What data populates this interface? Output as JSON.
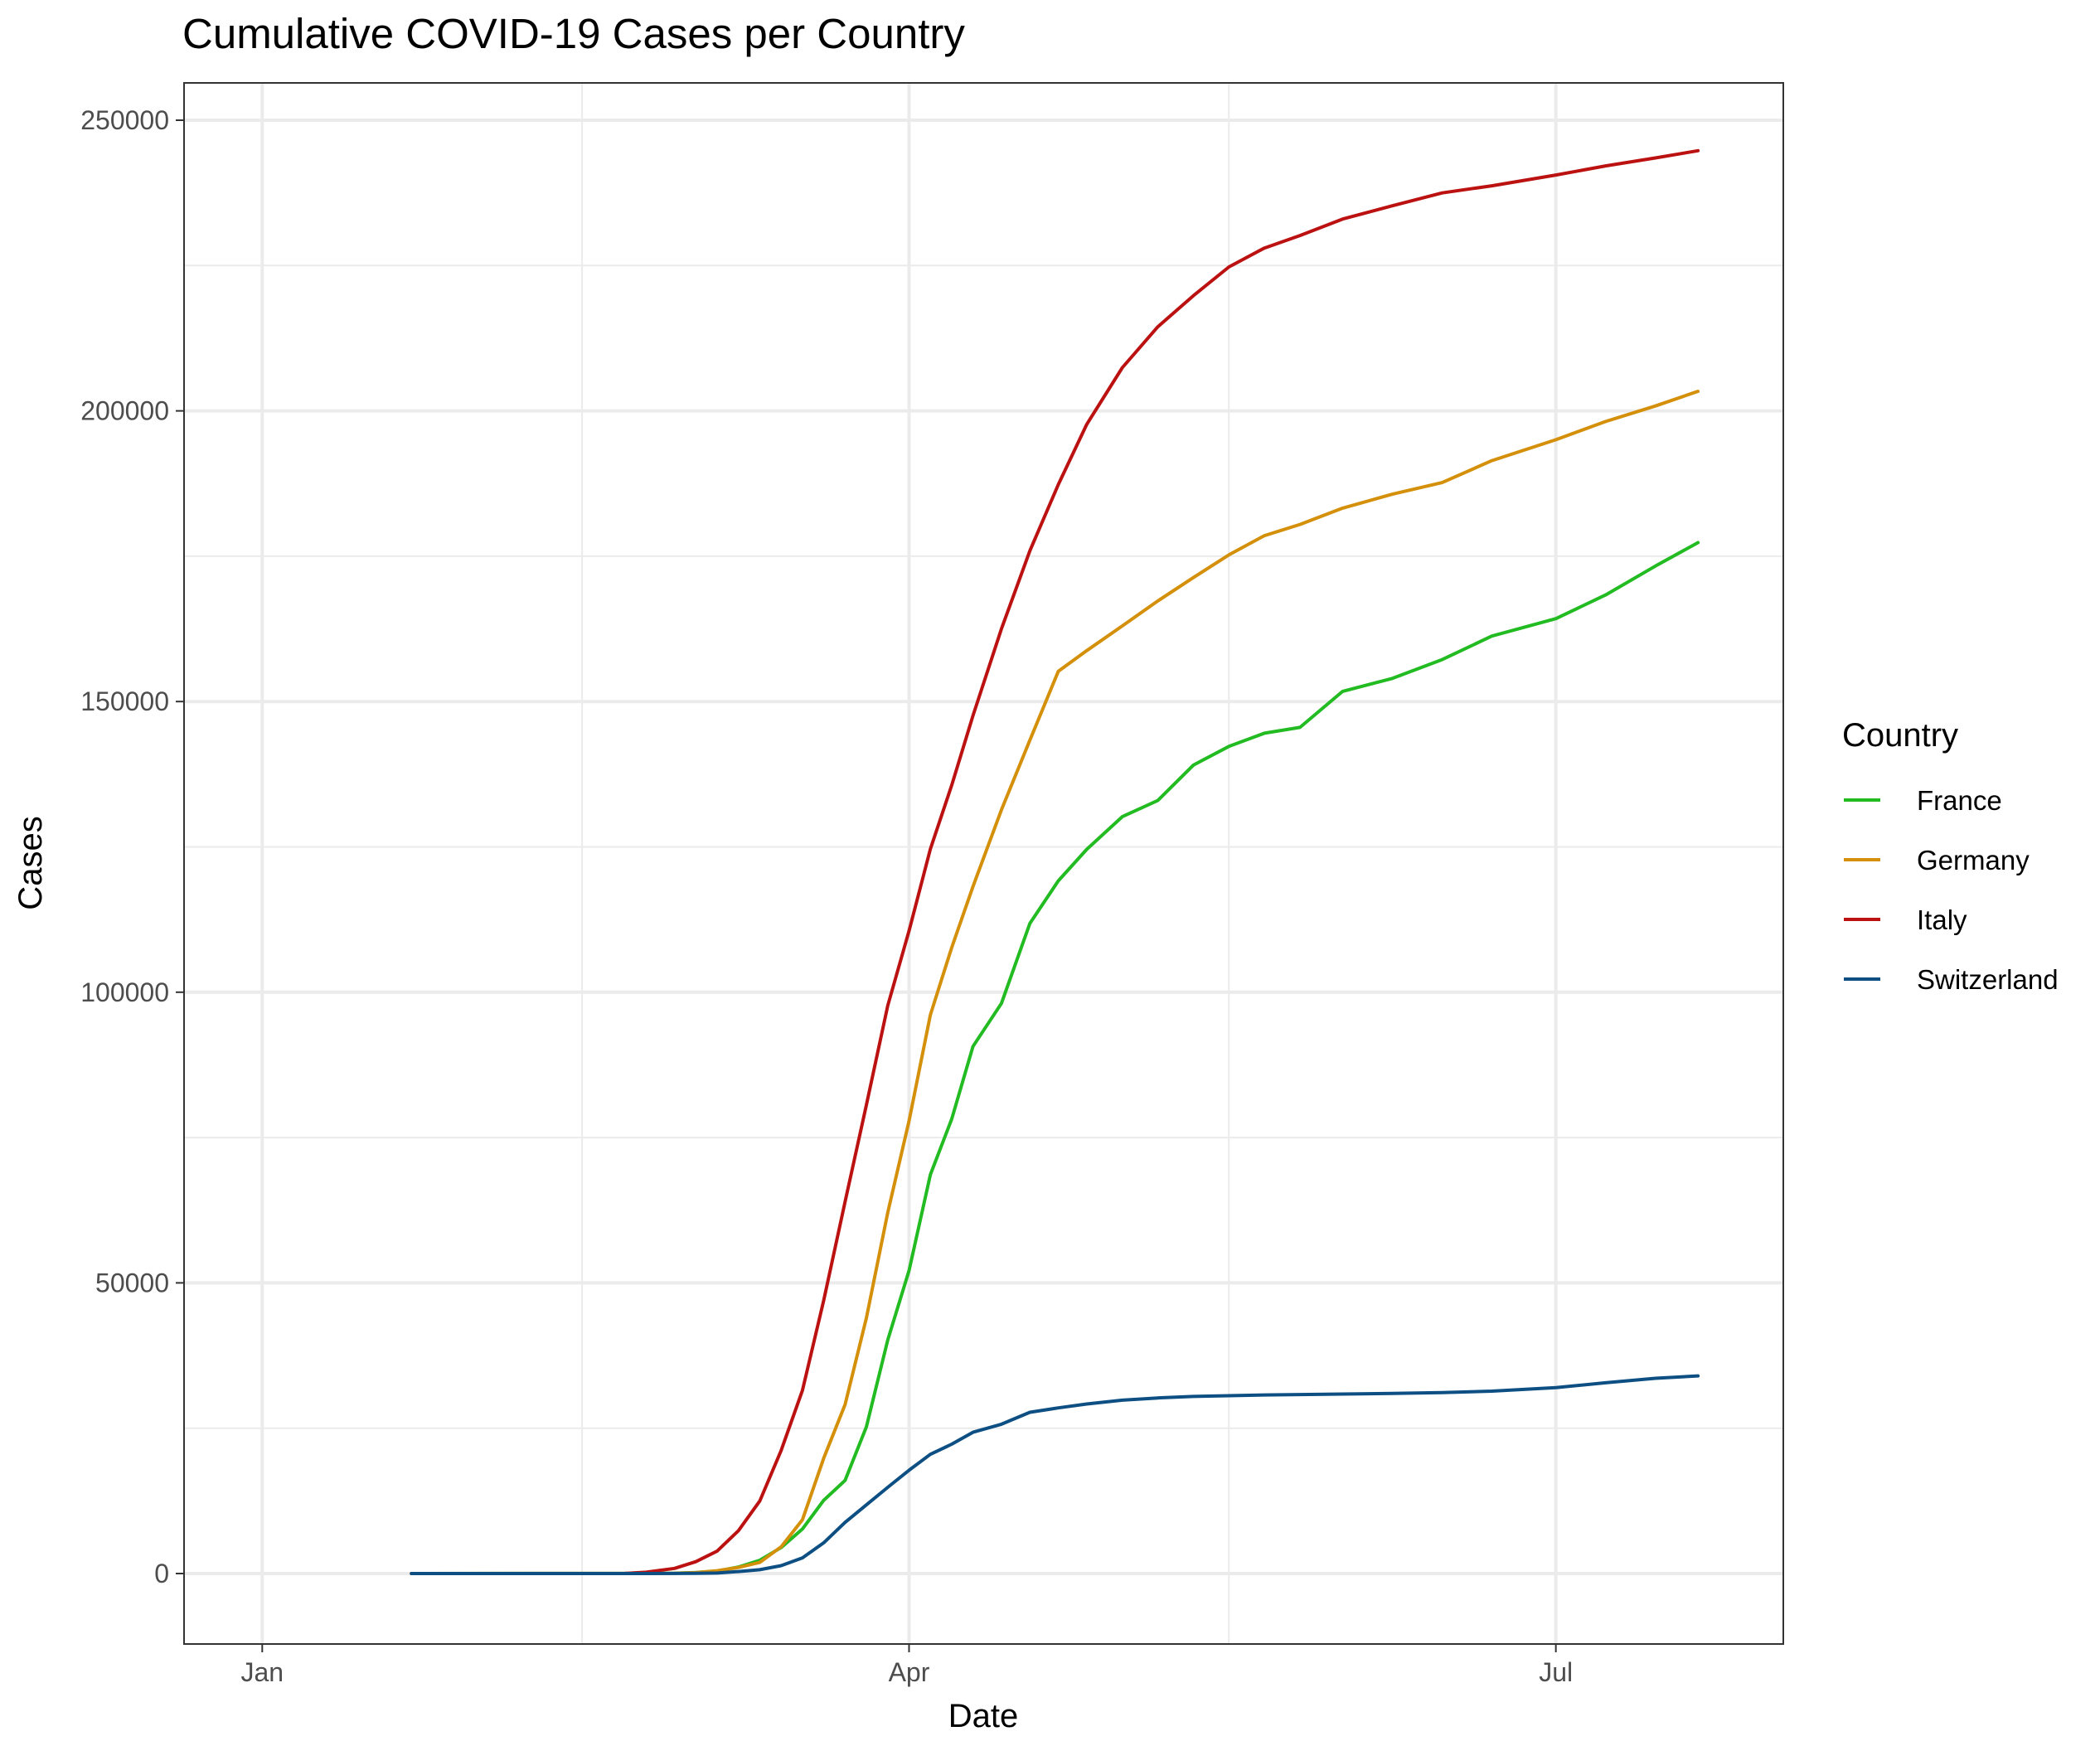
{
  "chart_data": {
    "type": "line",
    "title": "Cumulative COVID-19 Cases per Country",
    "xlabel": "Date",
    "ylabel": "Cases",
    "x_ticks": [
      "Jan",
      "Apr",
      "Jul"
    ],
    "x_tick_dates": [
      "2020-01-01",
      "2020-04-01",
      "2020-07-01"
    ],
    "y_ticks": [
      "0",
      "50000",
      "100000",
      "150000",
      "200000",
      "250000"
    ],
    "xlim": [
      "2019-12-21",
      "2020-08-02"
    ],
    "ylim": [
      -12000,
      250000
    ],
    "grid": true,
    "legend_title": "Country",
    "legend_position": "right",
    "x": [
      "2020-01-22",
      "2020-02-15",
      "2020-02-21",
      "2020-02-24",
      "2020-02-28",
      "2020-03-02",
      "2020-03-05",
      "2020-03-08",
      "2020-03-11",
      "2020-03-14",
      "2020-03-17",
      "2020-03-20",
      "2020-03-23",
      "2020-03-26",
      "2020-03-29",
      "2020-04-01",
      "2020-04-04",
      "2020-04-07",
      "2020-04-10",
      "2020-04-14",
      "2020-04-18",
      "2020-04-22",
      "2020-04-26",
      "2020-05-01",
      "2020-05-06",
      "2020-05-11",
      "2020-05-16",
      "2020-05-21",
      "2020-05-26",
      "2020-06-01",
      "2020-06-08",
      "2020-06-15",
      "2020-06-22",
      "2020-07-01",
      "2020-07-08",
      "2020-07-15",
      "2020-07-21"
    ],
    "series": [
      {
        "name": "France",
        "color": "#22bb22",
        "values": [
          0,
          12,
          12,
          12,
          57,
          191,
          423,
          1126,
          2284,
          4469,
          7652,
          12612,
          16018,
          25233,
          40174,
          52128,
          68605,
          78167,
          90676,
          98076,
          111821,
          119151,
          124575,
          130185,
          132967,
          139063,
          142291,
          144556,
          145555,
          151753,
          153977,
          157220,
          161267,
          164260,
          168335,
          173304,
          177338
        ]
      },
      {
        "name": "Germany",
        "color": "#d4900a",
        "values": [
          0,
          16,
          16,
          16,
          48,
          159,
          482,
          1040,
          1908,
          4585,
          9257,
          19848,
          29056,
          43938,
          62095,
          77872,
          96092,
          107663,
          118181,
          131359,
          143342,
          155193,
          158758,
          163009,
          167300,
          171324,
          175233,
          178531,
          180458,
          183271,
          185674,
          187671,
          191449,
          195042,
          198178,
          200843,
          203368
        ]
      },
      {
        "name": "Italy",
        "color": "#bb1111",
        "values": [
          0,
          3,
          20,
          229,
          888,
          2036,
          3858,
          7375,
          12462,
          21157,
          31506,
          47021,
          63927,
          80589,
          97689,
          110574,
          124632,
          135586,
          147577,
          162488,
          175925,
          187327,
          197675,
          207428,
          214457,
          219814,
          224760,
          228006,
          230158,
          232997,
          235278,
          237500,
          238720,
          240578,
          242149,
          243506,
          244752
        ]
      },
      {
        "name": "Switzerland",
        "color": "#0d4f82",
        "values": [
          0,
          0,
          0,
          0,
          8,
          42,
          90,
          337,
          652,
          1359,
          2700,
          5294,
          8795,
          11811,
          14829,
          17768,
          20505,
          22242,
          24308,
          25688,
          27740,
          28496,
          29164,
          29817,
          30207,
          30463,
          30587,
          30725,
          30788,
          30874,
          30987,
          31131,
          31376,
          31967,
          32817,
          33591,
          34000
        ]
      }
    ]
  }
}
